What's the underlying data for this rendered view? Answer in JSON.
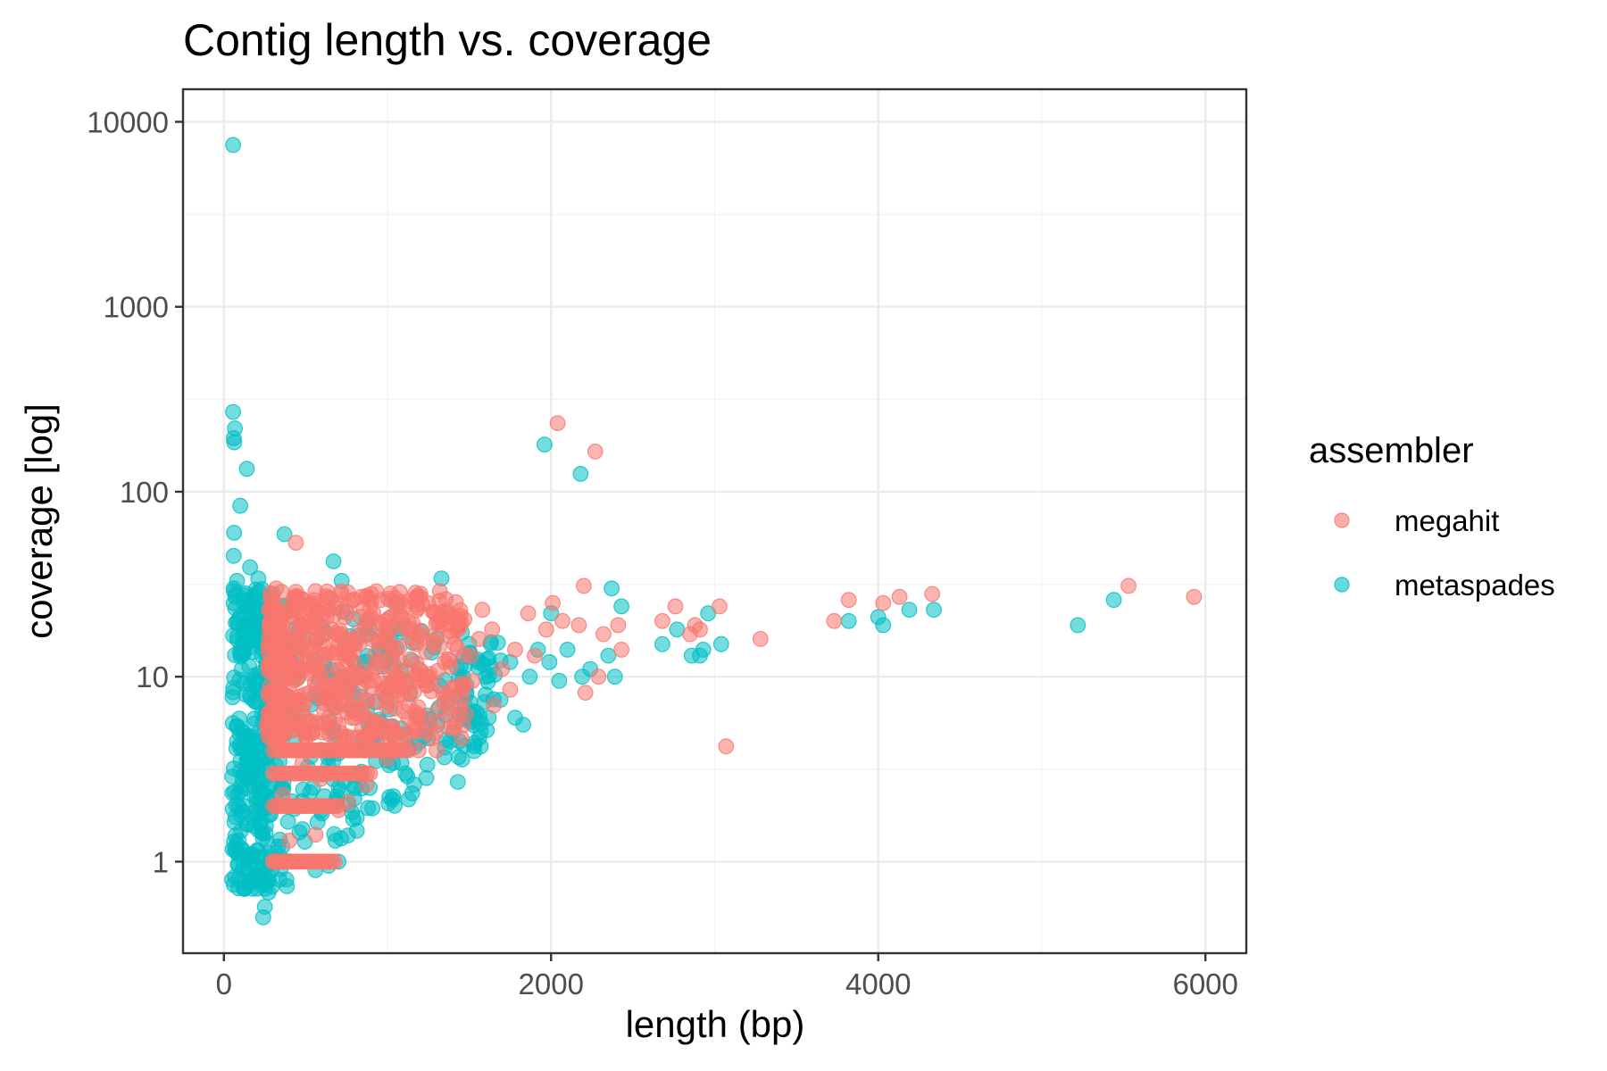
{
  "chart_data": {
    "type": "scatter",
    "title": "Contig length vs. coverage",
    "xlabel": "length (bp)",
    "ylabel": "coverage [log]",
    "xlim": [
      -250,
      6250
    ],
    "ylim": [
      0.32,
      15000
    ],
    "y_scale": "log10",
    "x_ticks": [
      0,
      2000,
      4000,
      6000
    ],
    "x_tick_labels": [
      "0",
      "2000",
      "4000",
      "6000"
    ],
    "y_ticks": [
      1,
      10,
      100,
      1000,
      10000
    ],
    "y_tick_labels": [
      "1",
      "10",
      "100",
      "1000",
      "10000"
    ],
    "grid": true,
    "legend": {
      "title": "assembler",
      "position": "right",
      "entries": [
        "megahit",
        "metaspades"
      ]
    },
    "series": [
      {
        "name": "megahit",
        "color": "#F8766D",
        "points": [
          [
            2040,
            235
          ],
          [
            2270,
            165
          ],
          [
            440,
            53
          ],
          [
            2200,
            31
          ],
          [
            5530,
            31
          ],
          [
            5930,
            27
          ],
          [
            4330,
            28
          ],
          [
            4130,
            27
          ],
          [
            4030,
            25
          ],
          [
            3820,
            26
          ],
          [
            3730,
            20
          ],
          [
            3030,
            24
          ],
          [
            2760,
            24
          ],
          [
            2680,
            20
          ],
          [
            2880,
            19
          ],
          [
            2850,
            17
          ],
          [
            2910,
            18
          ],
          [
            3280,
            16
          ],
          [
            3070,
            4.2
          ],
          [
            2430,
            14
          ],
          [
            2410,
            19
          ],
          [
            2320,
            17
          ],
          [
            2170,
            19
          ],
          [
            2290,
            10
          ],
          [
            2210,
            8.2
          ],
          [
            2010,
            25
          ],
          [
            2070,
            20
          ],
          [
            1860,
            22
          ],
          [
            1970,
            18
          ],
          [
            1780,
            14
          ],
          [
            1640,
            18
          ],
          [
            1580,
            23
          ],
          [
            1510,
            13
          ],
          [
            1470,
            9
          ],
          [
            1410,
            15
          ],
          [
            1320,
            29
          ],
          [
            1290,
            22
          ],
          [
            1200,
            27
          ],
          [
            1150,
            18
          ],
          [
            1100,
            24
          ],
          [
            1050,
            10
          ],
          [
            1010,
            15
          ],
          [
            960,
            26
          ],
          [
            900,
            28
          ],
          [
            880,
            20
          ],
          [
            840,
            27
          ],
          [
            800,
            12
          ],
          [
            760,
            14
          ],
          [
            720,
            9
          ],
          [
            690,
            25
          ],
          [
            660,
            18
          ],
          [
            610,
            11
          ],
          [
            560,
            29
          ],
          [
            530,
            20
          ],
          [
            490,
            8
          ],
          [
            460,
            16
          ],
          [
            430,
            27
          ],
          [
            400,
            12
          ],
          [
            370,
            22
          ],
          [
            340,
            9
          ],
          [
            320,
            30
          ],
          [
            300,
            14
          ],
          [
            290,
            6
          ],
          [
            280,
            19
          ],
          [
            310,
            25
          ],
          [
            350,
            6.5
          ],
          [
            380,
            17
          ],
          [
            410,
            23
          ],
          [
            450,
            7
          ],
          [
            480,
            26
          ],
          [
            520,
            14
          ],
          [
            570,
            8
          ],
          [
            600,
            22
          ],
          [
            640,
            6
          ],
          [
            680,
            13
          ],
          [
            740,
            21
          ],
          [
            780,
            7
          ],
          [
            820,
            16
          ],
          [
            860,
            10
          ],
          [
            920,
            13
          ],
          [
            990,
            20
          ],
          [
            1080,
            12
          ],
          [
            1130,
            7
          ],
          [
            1180,
            15
          ],
          [
            1250,
            10
          ],
          [
            1350,
            12
          ],
          [
            1440,
            6.3
          ],
          [
            1520,
            9.5
          ],
          [
            1560,
            16
          ],
          [
            1700,
            11
          ],
          [
            1900,
            13
          ],
          [
            1750,
            8.5
          ],
          [
            1650,
            7
          ],
          [
            1380,
            8
          ],
          [
            1220,
            6
          ],
          [
            960,
            5.3
          ],
          [
            880,
            4.8
          ],
          [
            1000,
            3.6
          ],
          [
            870,
            2.6
          ],
          [
            760,
            2.1
          ],
          [
            700,
            1.9
          ],
          [
            590,
            2.8
          ],
          [
            480,
            3.4
          ],
          [
            360,
            2.3
          ],
          [
            330,
            4.6
          ],
          [
            400,
            1.3
          ],
          [
            560,
            1.4
          ],
          [
            620,
            1
          ],
          [
            500,
            1
          ],
          [
            420,
            1
          ],
          [
            330,
            1
          ],
          [
            300,
            1
          ],
          [
            600,
            5
          ],
          [
            700,
            5.5
          ],
          [
            800,
            6
          ],
          [
            420,
            5.2
          ],
          [
            260,
            5.5
          ],
          [
            1300,
            4
          ],
          [
            1190,
            4
          ]
        ],
        "bands": [
          {
            "x": [
              300,
              690
            ],
            "y": [
              1,
              1
            ]
          },
          {
            "x": [
              300,
              700
            ],
            "y": [
              2,
              2
            ]
          },
          {
            "x": [
              300,
              900
            ],
            "y": [
              3,
              3
            ]
          },
          {
            "x": [
              300,
              1130
            ],
            "y": [
              4,
              4
            ]
          }
        ],
        "cloud": {
          "x": [
            270,
            1480
          ],
          "y": [
            4.6,
            29
          ]
        }
      },
      {
        "name": "metaspades",
        "color": "#00BFC4",
        "points": [
          [
            56,
            7500
          ],
          [
            56,
            270
          ],
          [
            67,
            220
          ],
          [
            60,
            195
          ],
          [
            63,
            185
          ],
          [
            140,
            133
          ],
          [
            100,
            84
          ],
          [
            1960,
            180
          ],
          [
            2180,
            125
          ],
          [
            62,
            60
          ],
          [
            370,
            59
          ],
          [
            60,
            45
          ],
          [
            670,
            42
          ],
          [
            160,
            39
          ],
          [
            720,
            33
          ],
          [
            1330,
            34
          ],
          [
            2370,
            30
          ],
          [
            2430,
            24
          ],
          [
            2960,
            22
          ],
          [
            2770,
            18
          ],
          [
            2680,
            15
          ],
          [
            2930,
            14
          ],
          [
            2910,
            13
          ],
          [
            2860,
            13
          ],
          [
            3040,
            15
          ],
          [
            2350,
            13
          ],
          [
            2390,
            10
          ],
          [
            2240,
            11
          ],
          [
            2190,
            10
          ],
          [
            2100,
            14
          ],
          [
            2000,
            22
          ],
          [
            2050,
            9.5
          ],
          [
            1990,
            12
          ],
          [
            1920,
            14
          ],
          [
            1870,
            10
          ],
          [
            1780,
            6
          ],
          [
            1830,
            5.5
          ],
          [
            1690,
            7.5
          ],
          [
            1570,
            4.2
          ],
          [
            1430,
            2.7
          ],
          [
            1110,
            3
          ],
          [
            3820,
            20
          ],
          [
            4000,
            21
          ],
          [
            4030,
            19
          ],
          [
            4190,
            23
          ],
          [
            4340,
            23
          ],
          [
            5220,
            19
          ],
          [
            5440,
            26
          ],
          [
            700,
            1
          ],
          [
            880,
            1.95
          ],
          [
            800,
            2.5
          ],
          [
            930,
            3.5
          ],
          [
            1400,
            5
          ],
          [
            1200,
            6
          ],
          [
            1050,
            25
          ],
          [
            1300,
            16
          ],
          [
            1600,
            8
          ],
          [
            1750,
            12
          ],
          [
            240,
            0.5
          ],
          [
            250,
            0.57
          ],
          [
            230,
            0.8
          ],
          [
            50,
            0.8
          ],
          [
            60,
            0.75
          ],
          [
            90,
            1.3
          ],
          [
            130,
            0.9
          ],
          [
            170,
            1.1
          ],
          [
            200,
            0.85
          ],
          [
            220,
            2.2
          ],
          [
            560,
            0.9
          ],
          [
            640,
            0.95
          ],
          [
            480,
            1.5
          ],
          [
            350,
            2.5
          ],
          [
            90,
            2
          ],
          [
            60,
            30
          ],
          [
            70,
            27
          ],
          [
            120,
            22
          ],
          [
            200,
            18
          ],
          [
            250,
            26
          ],
          [
            300,
            28
          ],
          [
            210,
            34
          ],
          [
            60,
            25
          ],
          [
            80,
            33
          ]
        ],
        "cloud": {
          "x": [
            50,
            1700
          ],
          "y": [
            0.8,
            28
          ]
        }
      }
    ]
  }
}
